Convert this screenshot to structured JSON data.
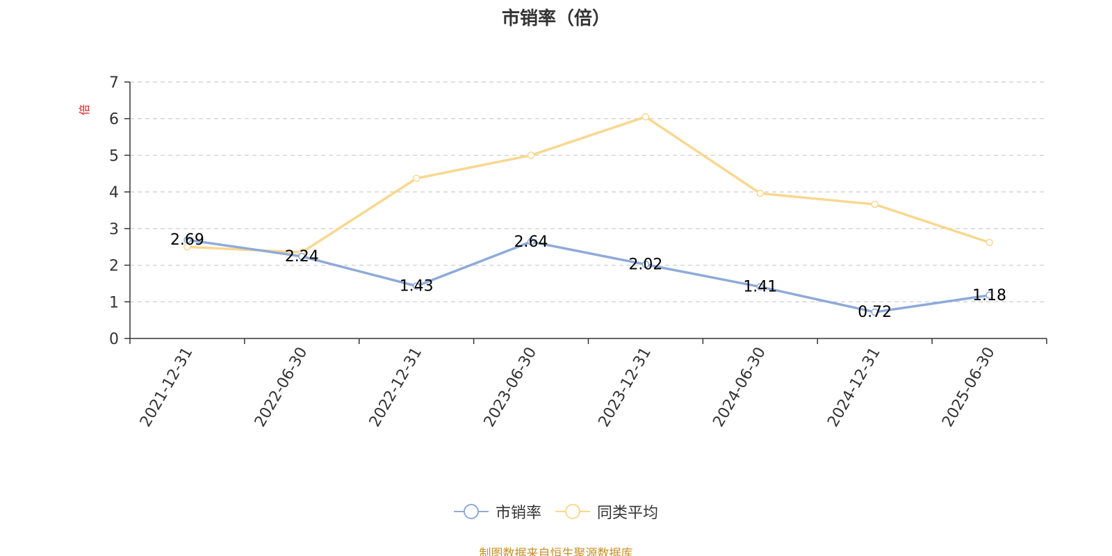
{
  "chart_data": {
    "type": "line",
    "title": "市销率（倍）",
    "ylabel": "倍",
    "xlabel": "",
    "categories": [
      "2021-12-31",
      "2022-06-30",
      "2022-12-31",
      "2023-06-30",
      "2023-12-31",
      "2024-06-30",
      "2024-12-31",
      "2025-06-30"
    ],
    "ylim": [
      0,
      7
    ],
    "yticks": [
      0,
      1,
      2,
      3,
      4,
      5,
      6,
      7
    ],
    "grid": true,
    "legend_position": "bottom",
    "series": [
      {
        "name": "市销率",
        "color": "#8eaad8",
        "values": [
          2.69,
          2.24,
          1.43,
          2.64,
          2.02,
          1.41,
          0.72,
          1.18
        ],
        "value_labels": [
          "2.69",
          "2.24",
          "1.43",
          "2.64",
          "2.02",
          "1.41",
          "0.72",
          "1.18"
        ]
      },
      {
        "name": "同类平均",
        "color": "#f9d78f",
        "values": [
          2.5,
          2.35,
          4.37,
          5.0,
          6.05,
          3.96,
          3.66,
          2.62
        ]
      }
    ]
  },
  "source": "制图数据来自恒生聚源数据库",
  "colors": {
    "axis": "#333333",
    "grid": "#cccccc",
    "ylabel": "#e02020"
  }
}
